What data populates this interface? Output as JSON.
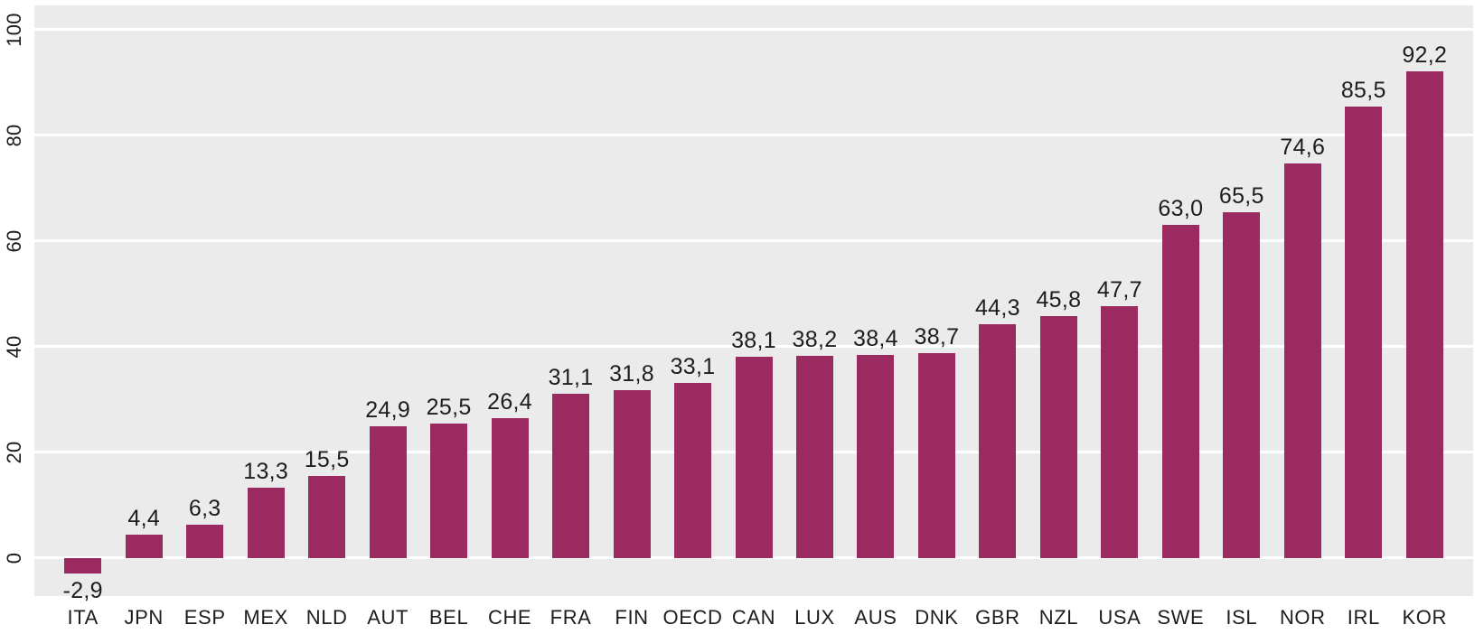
{
  "chart_data": {
    "type": "bar",
    "title": "",
    "xlabel": "",
    "ylabel": "",
    "categories": [
      "ITA",
      "JPN",
      "ESP",
      "MEX",
      "NLD",
      "AUT",
      "BEL",
      "CHE",
      "FRA",
      "FIN",
      "OECD",
      "CAN",
      "LUX",
      "AUS",
      "DNK",
      "GBR",
      "NZL",
      "USA",
      "SWE",
      "ISL",
      "NOR",
      "IRL",
      "KOR"
    ],
    "values": [
      -2.9,
      4.4,
      6.3,
      13.3,
      15.5,
      24.9,
      25.5,
      26.4,
      31.1,
      31.8,
      33.1,
      38.1,
      38.2,
      38.4,
      38.7,
      44.3,
      45.8,
      47.7,
      63.0,
      65.5,
      74.6,
      85.5,
      92.2
    ],
    "value_labels": [
      "-2,9",
      "4,4",
      "6,3",
      "13,3",
      "15,5",
      "24,9",
      "25,5",
      "26,4",
      "31,1",
      "31,8",
      "33,1",
      "38,1",
      "38,2",
      "38,4",
      "38,7",
      "44,3",
      "45,8",
      "47,7",
      "63,0",
      "65,5",
      "74,6",
      "85,5",
      "92,2"
    ],
    "decimal_separator": ",",
    "y_ticks": [
      0,
      20,
      40,
      60,
      80,
      100
    ],
    "y_tick_labels": [
      "0",
      "20",
      "40",
      "60",
      "80",
      "100"
    ],
    "ylim": [
      -7.2,
      104.6
    ],
    "grid": true,
    "legend_position": "none",
    "colors": {
      "bar": "#9B2A60",
      "plot_background": "#EBEBEB",
      "gridline": "#FFFFFF",
      "text": "#1D1D1D",
      "page_background": "#FFFFFF"
    }
  }
}
